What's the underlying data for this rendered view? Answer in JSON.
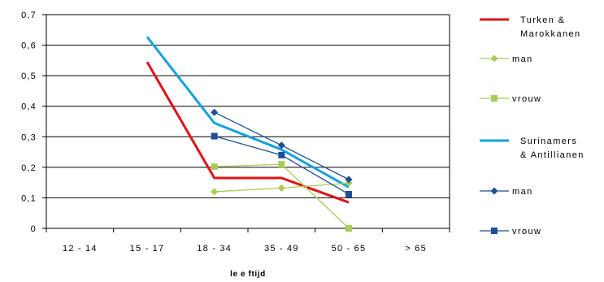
{
  "chart_data": {
    "type": "line",
    "title": "",
    "xlabel": "le e ftijd",
    "ylabel": "",
    "categories": [
      "12 - 14",
      "15 - 17",
      "18 - 34",
      "35 - 49",
      "50 - 65",
      "> 65"
    ],
    "ylim": [
      0,
      0.7
    ],
    "yticks": [
      0,
      0.1,
      0.2,
      0.3,
      0.4,
      0.5,
      0.6,
      0.7
    ],
    "ytick_labels": [
      "0",
      "0,1",
      "0,2",
      "0,3",
      "0,4",
      "0,5",
      "0,6",
      "0,7"
    ],
    "grid": true,
    "legend_position": "right",
    "series": [
      {
        "name_lines": [
          "Turken &",
          "Marokkanen"
        ],
        "color": "#e0131a",
        "width": 3,
        "marker": "none",
        "values": [
          null,
          0.545,
          0.165,
          0.165,
          0.085,
          null
        ]
      },
      {
        "name_lines": [
          "man"
        ],
        "color": "#a8cc58",
        "width": 1.3,
        "marker": "diamond",
        "values": [
          null,
          null,
          0.12,
          0.132,
          0.148,
          null
        ]
      },
      {
        "name_lines": [
          "vrouw"
        ],
        "color": "#a8cc58",
        "width": 1.3,
        "marker": "square",
        "values": [
          null,
          null,
          0.202,
          0.21,
          0.0,
          null
        ]
      },
      {
        "name_lines": [
          "Surinamers",
          "& Antillianen"
        ],
        "color": "#14a2dc",
        "width": 3,
        "marker": "none",
        "values": [
          null,
          0.627,
          0.345,
          0.258,
          0.135,
          null
        ]
      },
      {
        "name_lines": [
          "man"
        ],
        "color": "#1f4f96",
        "width": 1.3,
        "marker": "diamond",
        "values": [
          null,
          null,
          0.38,
          0.272,
          0.16,
          null
        ]
      },
      {
        "name_lines": [
          "vrouw"
        ],
        "color": "#1f4f96",
        "width": 1.3,
        "marker": "square",
        "values": [
          null,
          null,
          0.302,
          0.24,
          0.112,
          null
        ]
      }
    ]
  }
}
